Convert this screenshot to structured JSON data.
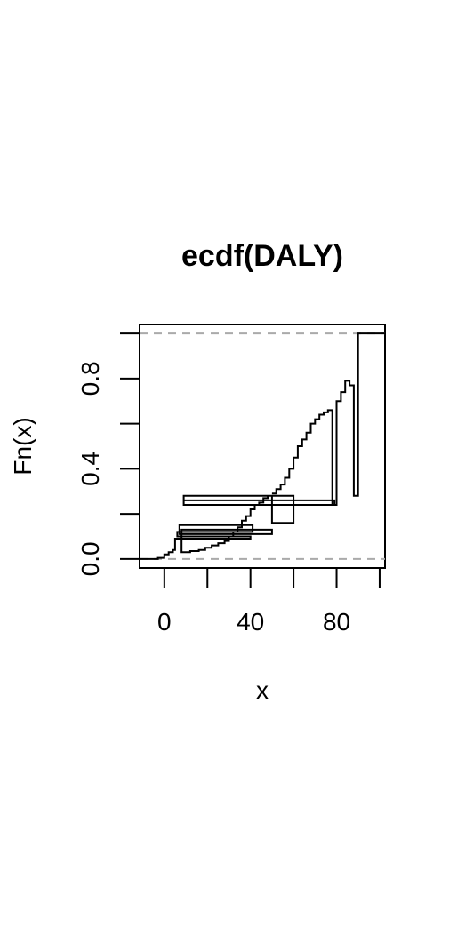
{
  "chart_data": {
    "type": "line",
    "title": "ecdf(DALY)",
    "xlabel": "x",
    "ylabel": "Fn(x)",
    "xlim": [
      -11.5,
      102.5
    ],
    "ylim": [
      -0.04,
      1.04
    ],
    "x_ticks": [
      0,
      20,
      40,
      60,
      80,
      100
    ],
    "x_tick_labels": [
      "0",
      "",
      "40",
      "",
      "80",
      ""
    ],
    "y_ticks": [
      0.0,
      0.2,
      0.4,
      0.6,
      0.8,
      1.0
    ],
    "y_tick_labels": [
      "0.0",
      "",
      "0.4",
      "",
      "0.8",
      ""
    ],
    "reference_lines": [
      {
        "y": 0,
        "style": "dashed",
        "color": "#aaaaaa"
      },
      {
        "y": 1,
        "style": "dashed",
        "color": "#aaaaaa"
      }
    ],
    "line_color": "#000000",
    "series": [
      {
        "points": [
          [
            -11.5,
            0.0
          ],
          [
            -3,
            0.0
          ],
          [
            -3,
            0.005
          ],
          [
            0,
            0.005
          ],
          [
            0,
            0.02
          ],
          [
            2,
            0.02
          ],
          [
            2,
            0.03
          ],
          [
            4,
            0.03
          ],
          [
            4,
            0.04
          ],
          [
            5,
            0.04
          ],
          [
            5,
            0.09
          ],
          [
            40,
            0.09
          ],
          [
            40,
            0.1
          ],
          [
            6,
            0.1
          ],
          [
            6,
            0.12
          ],
          [
            41,
            0.12
          ],
          [
            41,
            0.15
          ],
          [
            7,
            0.15
          ],
          [
            7,
            0.11
          ],
          [
            50,
            0.11
          ],
          [
            50,
            0.13
          ],
          [
            8,
            0.13
          ],
          [
            8,
            0.03
          ],
          [
            12,
            0.03
          ],
          [
            12,
            0.035
          ],
          [
            16,
            0.035
          ],
          [
            16,
            0.04
          ],
          [
            19,
            0.04
          ],
          [
            19,
            0.05
          ],
          [
            22,
            0.05
          ],
          [
            22,
            0.06
          ],
          [
            25,
            0.06
          ],
          [
            25,
            0.07
          ],
          [
            28,
            0.07
          ],
          [
            28,
            0.08
          ],
          [
            30,
            0.08
          ],
          [
            30,
            0.1
          ],
          [
            32,
            0.1
          ],
          [
            32,
            0.12
          ],
          [
            34,
            0.12
          ],
          [
            34,
            0.14
          ],
          [
            36,
            0.14
          ],
          [
            36,
            0.17
          ],
          [
            38,
            0.17
          ],
          [
            38,
            0.19
          ],
          [
            40,
            0.19
          ],
          [
            40,
            0.22
          ],
          [
            42,
            0.22
          ],
          [
            42,
            0.24
          ],
          [
            44,
            0.24
          ],
          [
            44,
            0.25
          ],
          [
            46,
            0.25
          ],
          [
            46,
            0.27
          ],
          [
            48,
            0.27
          ],
          [
            48,
            0.28
          ],
          [
            50,
            0.28
          ],
          [
            50,
            0.16
          ],
          [
            60,
            0.16
          ],
          [
            60,
            0.28
          ],
          [
            9,
            0.28
          ],
          [
            9,
            0.24
          ],
          [
            80,
            0.24
          ],
          [
            80,
            0.7
          ],
          [
            82,
            0.7
          ],
          [
            82,
            0.74
          ],
          [
            84,
            0.74
          ],
          [
            84,
            0.79
          ],
          [
            86,
            0.79
          ],
          [
            86,
            0.77
          ],
          [
            88,
            0.77
          ],
          [
            88,
            0.28
          ],
          [
            90,
            0.28
          ],
          [
            90,
            1.0
          ],
          [
            102.5,
            1.0
          ]
        ]
      },
      {
        "points": [
          [
            9,
            0.26
          ],
          [
            79,
            0.26
          ],
          [
            79,
            0.24
          ],
          [
            78,
            0.24
          ],
          [
            78,
            0.66
          ],
          [
            76,
            0.66
          ],
          [
            76,
            0.65
          ],
          [
            74,
            0.65
          ],
          [
            74,
            0.64
          ],
          [
            72,
            0.64
          ],
          [
            72,
            0.62
          ],
          [
            70,
            0.62
          ],
          [
            70,
            0.6
          ],
          [
            68,
            0.6
          ],
          [
            68,
            0.56
          ],
          [
            66,
            0.56
          ],
          [
            66,
            0.53
          ],
          [
            64,
            0.53
          ],
          [
            64,
            0.5
          ],
          [
            62,
            0.5
          ],
          [
            62,
            0.45
          ],
          [
            60,
            0.45
          ],
          [
            60,
            0.4
          ],
          [
            58,
            0.4
          ],
          [
            58,
            0.36
          ],
          [
            56,
            0.36
          ],
          [
            56,
            0.33
          ],
          [
            54,
            0.33
          ],
          [
            54,
            0.31
          ],
          [
            52,
            0.31
          ],
          [
            52,
            0.29
          ],
          [
            50,
            0.29
          ]
        ]
      }
    ]
  }
}
